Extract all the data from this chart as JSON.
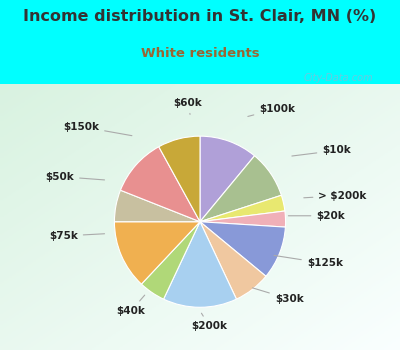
{
  "title": "Income distribution in St. Clair, MN (%)",
  "subtitle": "White residents",
  "title_color": "#333333",
  "subtitle_color": "#996633",
  "background_outer": "#00ffff",
  "background_inner": "#d8eedc",
  "watermark": "City-Data.com",
  "labels": [
    "$100k",
    "$10k",
    "> $200k",
    "$20k",
    "$125k",
    "$30k",
    "$200k",
    "$40k",
    "$75k",
    "$50k",
    "$150k",
    "$60k"
  ],
  "values": [
    11,
    9,
    3,
    3,
    10,
    7,
    14,
    5,
    13,
    6,
    11,
    8
  ],
  "colors": [
    "#b0a0d8",
    "#a8c090",
    "#e8e870",
    "#f0b0b8",
    "#8899d8",
    "#f0c8a0",
    "#a8d0f0",
    "#b0d878",
    "#f0b050",
    "#c8c0a0",
    "#e89090",
    "#c8a838"
  ],
  "label_data": [
    [
      "$100k",
      [
        0.38,
        0.88
      ],
      [
        0.65,
        0.95
      ]
    ],
    [
      "$10k",
      [
        0.75,
        0.55
      ],
      [
        1.15,
        0.6
      ]
    ],
    [
      "> $200k",
      [
        0.85,
        0.2
      ],
      [
        1.2,
        0.22
      ]
    ],
    [
      "$20k",
      [
        0.72,
        0.05
      ],
      [
        1.1,
        0.05
      ]
    ],
    [
      "$125k",
      [
        0.6,
        -0.28
      ],
      [
        1.05,
        -0.35
      ]
    ],
    [
      "$30k",
      [
        0.42,
        -0.55
      ],
      [
        0.75,
        -0.65
      ]
    ],
    [
      "$200k",
      [
        0.0,
        -0.75
      ],
      [
        0.08,
        -0.88
      ]
    ],
    [
      "$40k",
      [
        -0.45,
        -0.6
      ],
      [
        -0.58,
        -0.75
      ]
    ],
    [
      "$75k",
      [
        -0.78,
        -0.1
      ],
      [
        -1.15,
        -0.12
      ]
    ],
    [
      "$50k",
      [
        -0.78,
        0.35
      ],
      [
        -1.18,
        0.38
      ]
    ],
    [
      "$150k",
      [
        -0.55,
        0.72
      ],
      [
        -1.0,
        0.8
      ]
    ],
    [
      "$60k",
      [
        -0.08,
        0.88
      ],
      [
        -0.1,
        1.0
      ]
    ]
  ]
}
